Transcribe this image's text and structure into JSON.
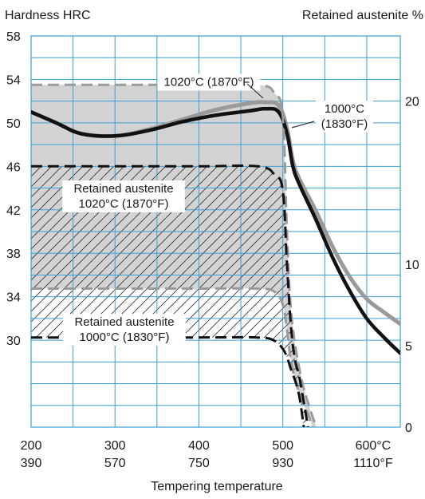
{
  "chart_data": {
    "type": "line",
    "ylabel_left": "Hardness HRC",
    "ylabel_right": "Retained austenite %",
    "xlabel": "Tempering temperature",
    "xlim": [
      200,
      640
    ],
    "ylim_left": [
      22,
      58
    ],
    "ylim_right": [
      0,
      24
    ],
    "x_ticks_c": [
      "200",
      "300",
      "400",
      "500",
      "600°C"
    ],
    "x_ticks_f": [
      "390",
      "570",
      "750",
      "930",
      "1110°F"
    ],
    "x_tick_values": [
      200,
      300,
      400,
      500,
      600
    ],
    "y_ticks_left": [
      30,
      34,
      38,
      42,
      46,
      50,
      54,
      58
    ],
    "y_ticks_right": [
      0,
      5,
      10,
      20
    ],
    "series": [
      {
        "name": "1020°C (1870°F)",
        "axis": "left",
        "color": "#9a9a9a",
        "style": "solid",
        "x": [
          200,
          230,
          260,
          300,
          340,
          380,
          420,
          460,
          480,
          495,
          505,
          512,
          520,
          540,
          560,
          580,
          600,
          620,
          640
        ],
        "y": [
          51.0,
          50.0,
          49.0,
          48.8,
          49.4,
          50.3,
          51.2,
          51.8,
          51.9,
          51.6,
          49.5,
          46.5,
          44.8,
          41.8,
          38.5,
          35.8,
          33.8,
          32.6,
          31.5
        ]
      },
      {
        "name": "1000°C (1830°F)",
        "axis": "left",
        "color": "#111111",
        "style": "solid",
        "x": [
          200,
          230,
          260,
          300,
          340,
          380,
          420,
          460,
          480,
          495,
          505,
          512,
          520,
          540,
          560,
          580,
          600,
          620,
          640
        ],
        "y": [
          51.0,
          50.0,
          49.0,
          48.8,
          49.3,
          50.1,
          50.7,
          51.1,
          51.3,
          51.0,
          49.0,
          46.0,
          44.3,
          41.0,
          37.5,
          34.5,
          32.0,
          30.3,
          28.8
        ]
      },
      {
        "name": "Retained austenite 1020°C (1870°F) upper",
        "axis": "right",
        "color": "#9a9a9a",
        "style": "dashed",
        "x": [
          200,
          300,
          400,
          470,
          490,
          500,
          505,
          510,
          520,
          530,
          540
        ],
        "y": [
          21.0,
          21.0,
          21.0,
          21.0,
          20.5,
          19.0,
          12.0,
          7.0,
          3.5,
          1.5,
          0.0
        ]
      },
      {
        "name": "Retained austenite 1020°C (1870°F) lower",
        "axis": "right",
        "color": "#9a9a9a",
        "style": "dashed",
        "x": [
          200,
          300,
          400,
          470,
          490,
          500,
          505,
          510,
          520,
          530,
          535
        ],
        "y": [
          8.5,
          8.5,
          8.5,
          8.5,
          8.3,
          7.5,
          6.0,
          4.0,
          2.0,
          0.8,
          0.0
        ]
      },
      {
        "name": "Retained austenite 1000°C (1830°F) upper",
        "axis": "right",
        "color": "#111111",
        "style": "dashed",
        "x": [
          200,
          300,
          400,
          470,
          490,
          500,
          505,
          510,
          515,
          520,
          530
        ],
        "y": [
          16.0,
          16.0,
          16.0,
          16.0,
          15.5,
          14.5,
          10.0,
          6.0,
          4.0,
          3.0,
          0.0
        ]
      },
      {
        "name": "Retained austenite 1000°C (1830°F) lower",
        "axis": "right",
        "color": "#111111",
        "style": "dashed",
        "x": [
          200,
          300,
          400,
          470,
          490,
          500,
          505,
          510,
          515,
          520,
          525
        ],
        "y": [
          5.5,
          5.5,
          5.5,
          5.5,
          5.3,
          4.8,
          4.3,
          3.5,
          2.8,
          1.8,
          0.0
        ]
      }
    ],
    "annotations": [
      {
        "text": "1020°C (1870°F)"
      },
      {
        "text_lines": [
          "1000°C",
          "(1830°F)"
        ]
      },
      {
        "text_lines": [
          "Retained austenite",
          "1020°C (1870°F)"
        ]
      },
      {
        "text_lines": [
          "Retained austenite",
          "1000°C (1830°F)"
        ]
      }
    ],
    "grid": true,
    "colors": {
      "grid": "#3aa0d6",
      "gray_band": "#d3d3d3",
      "gray_line": "#9a9a9a",
      "black_line": "#111111"
    }
  }
}
